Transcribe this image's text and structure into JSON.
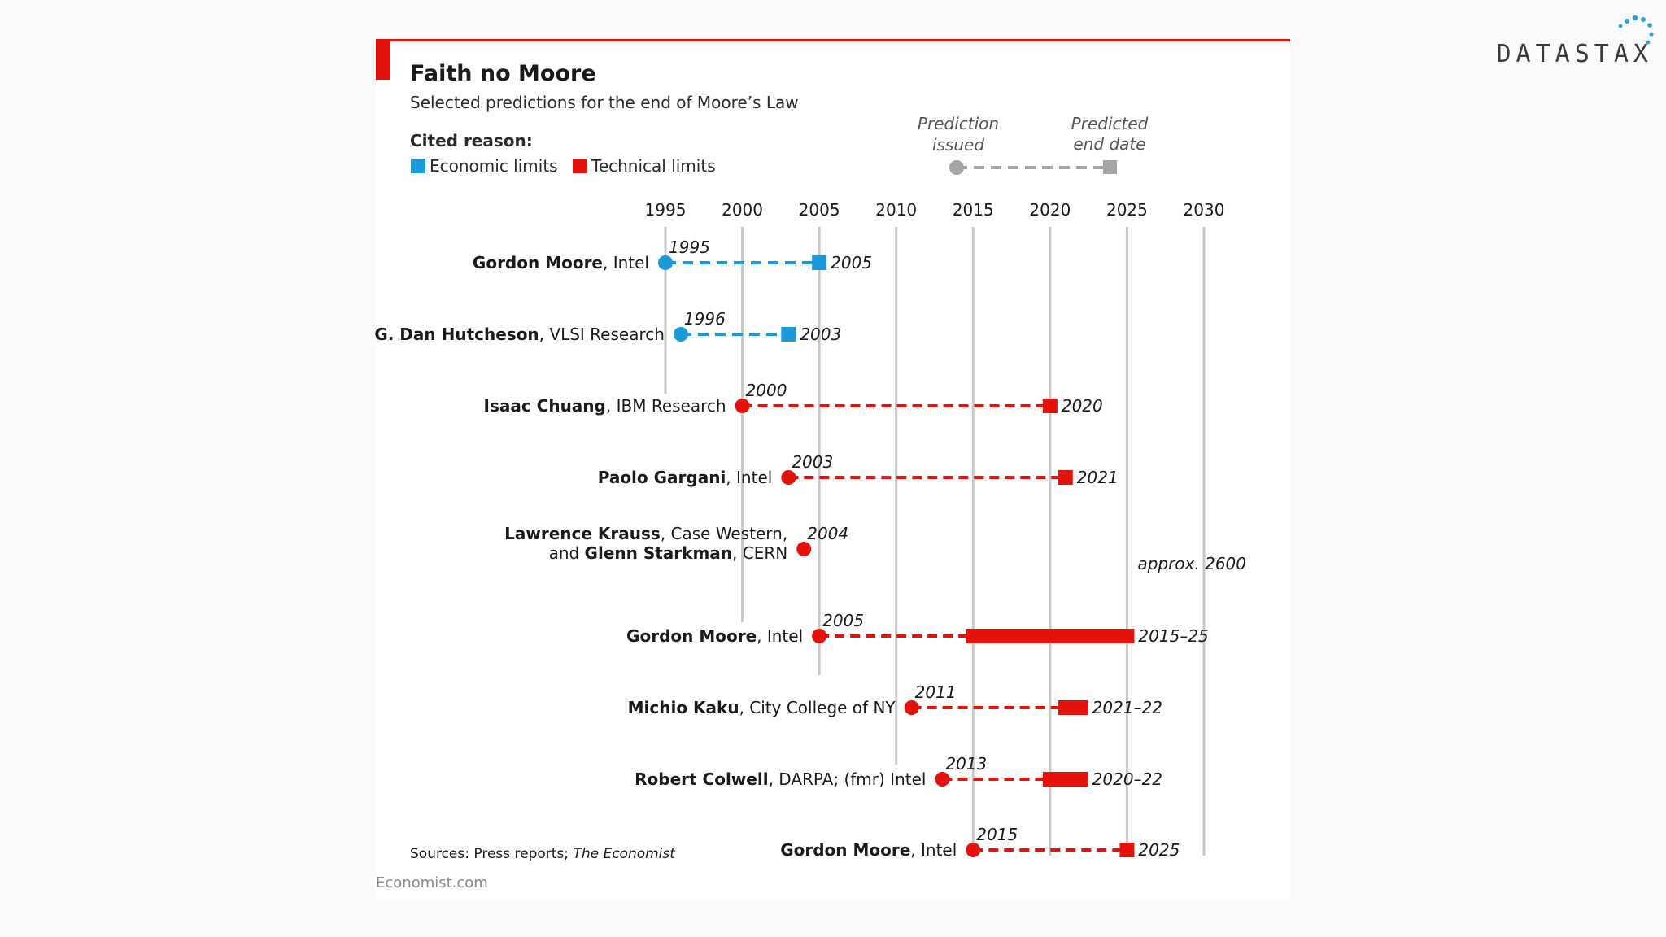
{
  "brand": {
    "logo_text": "DATASTAX"
  },
  "chart_data": {
    "type": "timeline",
    "title": "Faith no Moore",
    "subtitle": "Selected predictions for the end of Moore’s Law",
    "legend": {
      "heading": "Cited reason:",
      "economic": "Economic limits",
      "technical": "Technical limits",
      "prediction_issued": "Prediction\nissued",
      "predicted_end": "Predicted\nend date"
    },
    "colors": {
      "economic": "#1a9bd7",
      "technical": "#e3120b",
      "legend_gray": "#a5a5a5"
    },
    "xlim": [
      1995,
      2030
    ],
    "ticks": [
      1995,
      2000,
      2005,
      2010,
      2015,
      2020,
      2025,
      2030
    ],
    "rows": [
      {
        "name": "Gordon Moore",
        "org": ", Intel",
        "reason": "economic",
        "issued": 1995,
        "issued_label": "1995",
        "end": [
          2005,
          2005
        ],
        "end_label": "2005"
      },
      {
        "name": "G. Dan Hutcheson",
        "org": ", VLSI Research",
        "reason": "economic",
        "issued": 1996,
        "issued_label": "1996",
        "end": [
          2003,
          2003
        ],
        "end_label": "2003"
      },
      {
        "name": "Isaac Chuang",
        "org": ", IBM Research",
        "reason": "technical",
        "issued": 2000,
        "issued_label": "2000",
        "end": [
          2020,
          2020
        ],
        "end_label": "2020"
      },
      {
        "name": "Paolo Gargani",
        "org": ", Intel",
        "reason": "technical",
        "issued": 2003,
        "issued_label": "2003",
        "end": [
          2021,
          2021
        ],
        "end_label": "2021"
      },
      {
        "name": "Lawrence Krauss",
        "org": ", Case Western,",
        "name2_pre": "and ",
        "name2": "Glenn Starkman",
        "org2": ", CERN",
        "reason": "technical",
        "issued": 2004,
        "issued_label": "2004",
        "end_approx": 2600,
        "end_label": "approx. 2600"
      },
      {
        "name": "Gordon Moore",
        "org": ", Intel",
        "reason": "technical",
        "issued": 2005,
        "issued_label": "2005",
        "end": [
          2015,
          2025
        ],
        "end_label": "2015–25"
      },
      {
        "name": "Michio Kaku",
        "org": ", City College of NY",
        "reason": "technical",
        "issued": 2011,
        "issued_label": "2011",
        "end": [
          2021,
          2022
        ],
        "end_label": "2021–22"
      },
      {
        "name": "Robert Colwell",
        "org": ", DARPA; (fmr) Intel",
        "reason": "technical",
        "issued": 2013,
        "issued_label": "2013",
        "end": [
          2020,
          2022
        ],
        "end_label": "2020–22"
      },
      {
        "name": "Gordon Moore",
        "org": ", Intel",
        "reason": "technical",
        "issued": 2015,
        "issued_label": "2015",
        "end": [
          2025,
          2025
        ],
        "end_label": "2025"
      }
    ],
    "sources_prefix": "Sources: Press reports; ",
    "sources_pub": "The Economist",
    "credit": "Economist.com"
  }
}
